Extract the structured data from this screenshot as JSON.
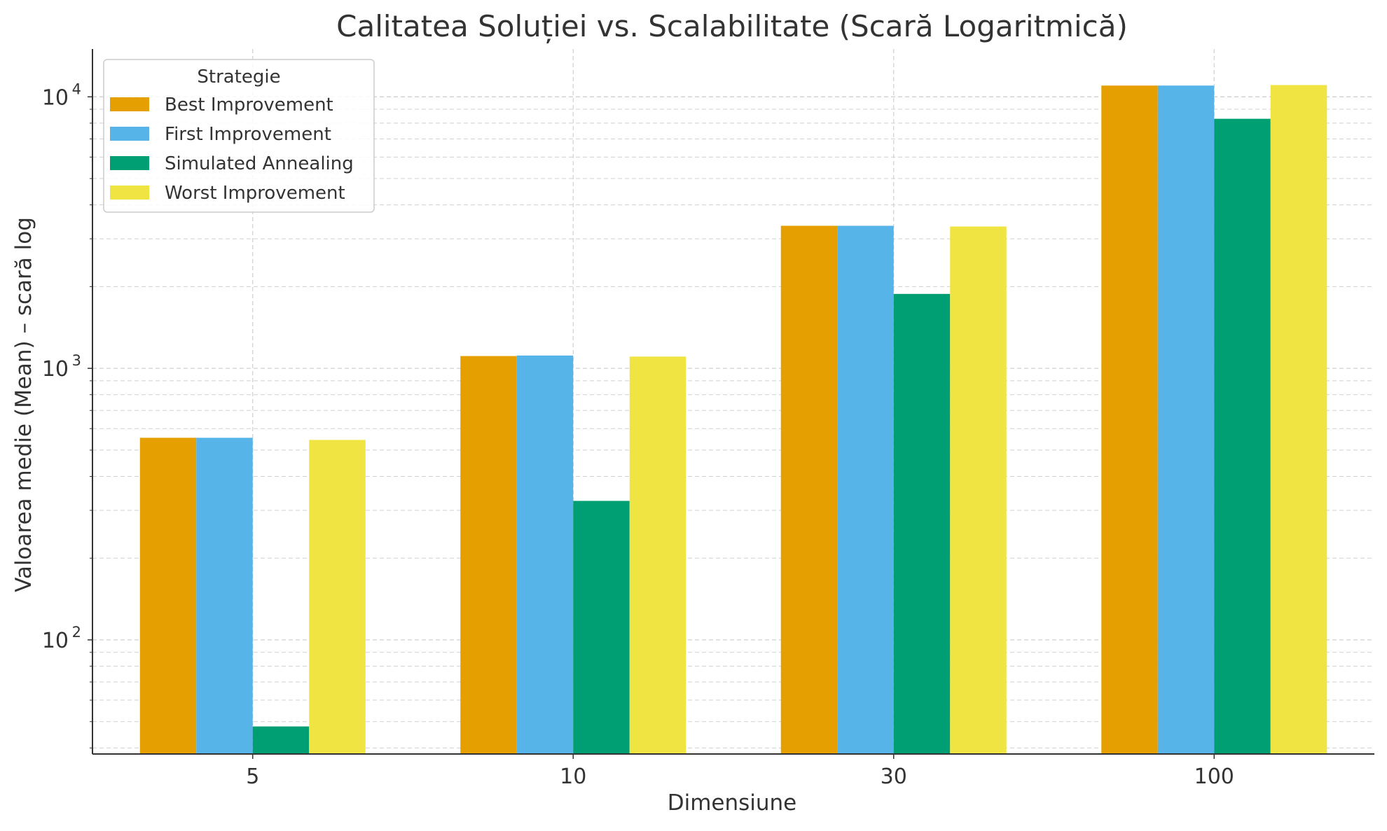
{
  "chart_data": {
    "type": "bar",
    "title": "Calitatea Soluției vs. Scalabilitate (Scară Logaritmică)",
    "xlabel": "Dimensiune",
    "ylabel": "Valoarea medie (Mean) – scară log",
    "yscale": "log",
    "ylim": [
      38,
      15000
    ],
    "categories": [
      "5",
      "10",
      "30",
      "100"
    ],
    "series": [
      {
        "name": "Best Improvement",
        "color": "#E69F00",
        "values": [
          555,
          1110,
          3350,
          11000
        ]
      },
      {
        "name": "First Improvement",
        "color": "#56B4E9",
        "values": [
          555,
          1115,
          3350,
          11000
        ]
      },
      {
        "name": "Simulated Annealing",
        "color": "#009E73",
        "values": [
          48,
          325,
          1880,
          8300
        ]
      },
      {
        "name": "Worst Improvement",
        "color": "#F0E442",
        "values": [
          545,
          1105,
          3330,
          11050
        ]
      }
    ],
    "y_ticks": [
      {
        "value": 100,
        "base": "10",
        "exp": "2"
      },
      {
        "value": 1000,
        "base": "10",
        "exp": "3"
      },
      {
        "value": 10000,
        "base": "10",
        "exp": "4"
      }
    ],
    "legend": {
      "title": "Strategie",
      "position": "top-left"
    },
    "grid": true
  }
}
